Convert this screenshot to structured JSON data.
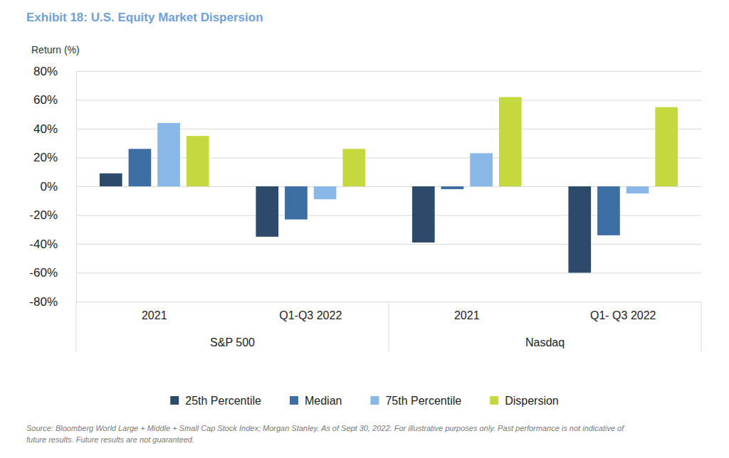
{
  "chart_data": {
    "type": "bar",
    "title": "Exhibit 18: U.S. Equity Market Dispersion",
    "y_label": "Return (%)",
    "categories": [
      "2021",
      "Q1-Q3 2022",
      "2021",
      "Q1- Q3 2022"
    ],
    "category_groups": [
      "S&P 500",
      "S&P 500",
      "Nasdaq",
      "Nasdaq"
    ],
    "series": [
      {
        "name": "25th Percentile",
        "color": "#2e4a6b",
        "values": [
          9,
          -35,
          -39,
          -60
        ]
      },
      {
        "name": "Median",
        "color": "#3d6fa5",
        "values": [
          26,
          -23,
          -2,
          -34
        ]
      },
      {
        "name": "75th Percentile",
        "color": "#8ab8e6",
        "values": [
          44,
          -9,
          23,
          -5
        ]
      },
      {
        "name": "Dispersion",
        "color": "#c5d93f",
        "values": [
          35,
          26,
          62,
          55
        ]
      }
    ],
    "ylim": [
      -80,
      80
    ],
    "yticks": [
      {
        "value": -80,
        "label": "-80%"
      },
      {
        "value": -60,
        "label": "-60%"
      },
      {
        "value": -40,
        "label": "-40%"
      },
      {
        "value": -20,
        "label": "-20%"
      },
      {
        "value": 0,
        "label": "0%"
      },
      {
        "value": 20,
        "label": "20%"
      },
      {
        "value": 40,
        "label": "40%"
      },
      {
        "value": 60,
        "label": "60%"
      },
      {
        "value": 80,
        "label": "80%"
      }
    ],
    "grid": true,
    "legend": "bottom",
    "source": [
      "Source: Bloomberg World Large + Middle + Small Cap Stock Index; Morgan Stanley. As of Sept 30, 2022. For illustrative purposes only. Past performance is not indicative of",
      "future results. Future results are not guaranteed."
    ]
  }
}
